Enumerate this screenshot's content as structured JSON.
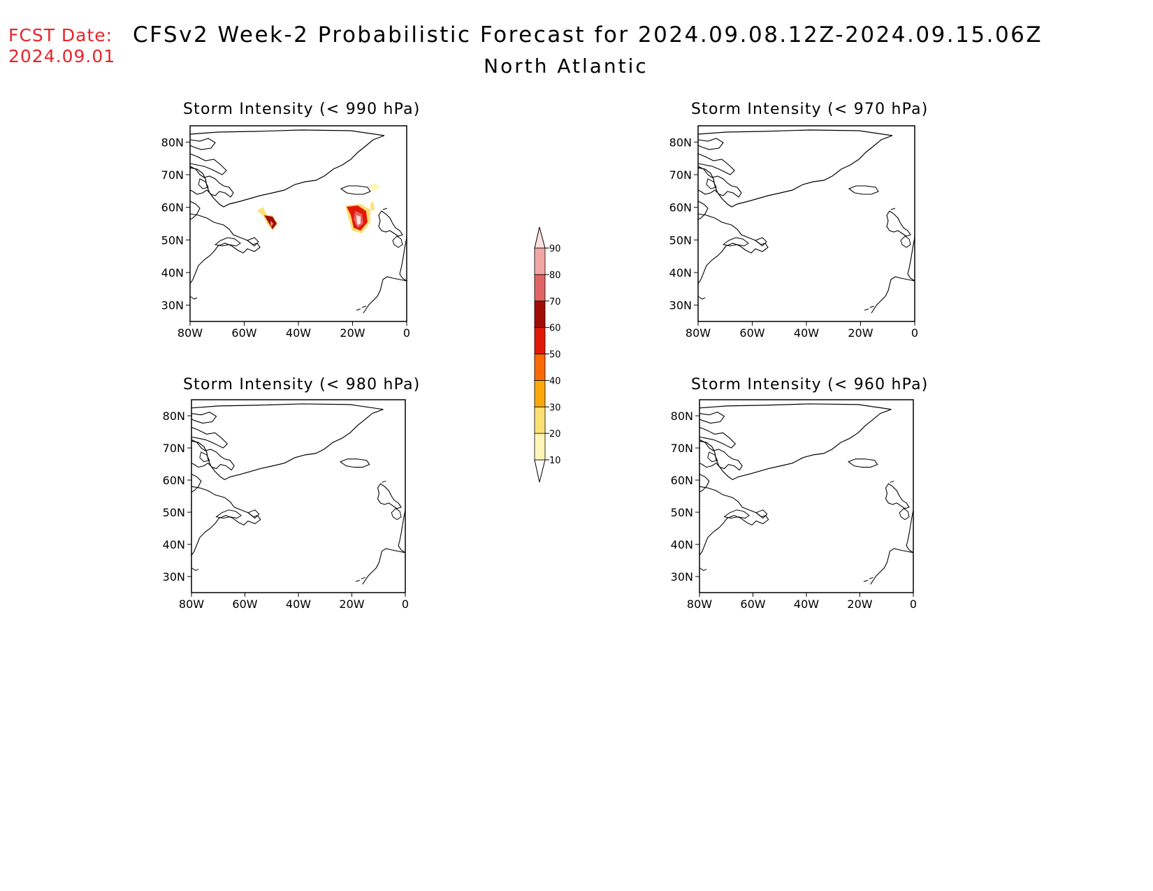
{
  "header": {
    "fcst_label": "FCST Date:",
    "fcst_date": "2024.09.01",
    "title": "CFSv2 Week-2 Probabilistic Forecast for 2024.09.08.12Z-2024.09.15.06Z",
    "subtitle": "North Atlantic"
  },
  "axes": {
    "lat_labels": [
      "80N",
      "70N",
      "60N",
      "50N",
      "40N",
      "30N"
    ],
    "lon_labels": [
      "80W",
      "60W",
      "40W",
      "20W",
      "0"
    ]
  },
  "panels": [
    {
      "title": "Storm Intensity (< 990 hPa)",
      "has_probability": true
    },
    {
      "title": "Storm Intensity (< 970 hPa)",
      "has_probability": false
    },
    {
      "title": "Storm Intensity (< 980 hPa)",
      "has_probability": false
    },
    {
      "title": "Storm Intensity (< 960 hPa)",
      "has_probability": false
    }
  ],
  "colorbar": {
    "levels": [
      "10",
      "20",
      "30",
      "40",
      "50",
      "60",
      "70",
      "80",
      "90"
    ],
    "colors": [
      "#fff6b8",
      "#fde073",
      "#fca80a",
      "#fc6a05",
      "#e21a05",
      "#a20c05",
      "#e06464",
      "#f2a6a6",
      "#fde0e0"
    ]
  }
}
